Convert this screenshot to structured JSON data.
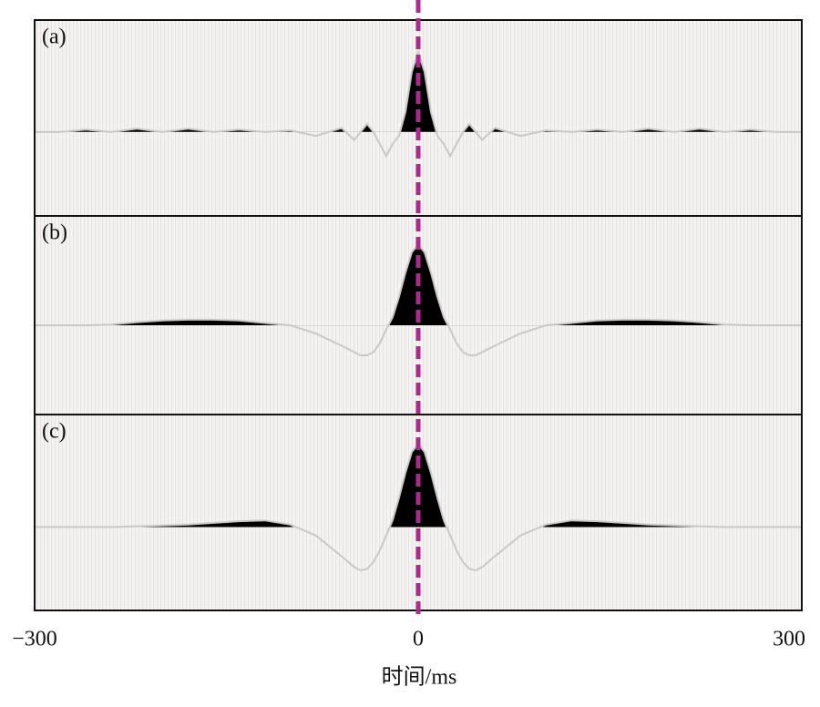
{
  "chart_data": {
    "type": "line",
    "xlabel": "时间/ms",
    "xlim": [
      -300,
      300
    ],
    "xticks": [
      {
        "value": -300,
        "label": "−300"
      },
      0,
      300
    ],
    "reference_x": 0,
    "reference_color": "#b0278e",
    "line_color": "#c8c8c8",
    "fill_color": "#000000",
    "x": [
      -300,
      -280,
      -260,
      -240,
      -220,
      -200,
      -180,
      -160,
      -140,
      -120,
      -100,
      -80,
      -60,
      -50,
      -45,
      -40,
      -35,
      -30,
      -25,
      -20,
      -15,
      -10,
      -5,
      0,
      5,
      10,
      15,
      20,
      25,
      30,
      35,
      40,
      45,
      50,
      60,
      80,
      100,
      120,
      140,
      160,
      180,
      200,
      220,
      240,
      260,
      280,
      300
    ],
    "panels": [
      {
        "label": "(a)",
        "ylim": [
          -1.05,
          1.4
        ],
        "values": [
          0,
          0,
          0.03,
          0,
          0.04,
          0,
          0.04,
          0,
          0.03,
          0,
          0.02,
          -0.05,
          0.05,
          -0.1,
          0,
          0.1,
          0,
          -0.15,
          -0.3,
          -0.15,
          -0.05,
          0.25,
          0.75,
          1,
          0.75,
          0.25,
          -0.05,
          -0.15,
          -0.3,
          -0.15,
          0,
          0.1,
          0,
          -0.1,
          0.05,
          -0.05,
          0.02,
          0,
          0.03,
          0,
          0.04,
          0,
          0.04,
          0,
          0.03,
          0,
          0
        ]
      },
      {
        "label": "(b)",
        "ylim": [
          -1.1,
          1.35
        ],
        "values": [
          0,
          0,
          0,
          0.01,
          0.04,
          0.06,
          0.07,
          0.07,
          0.06,
          0.03,
          0,
          -0.1,
          -0.25,
          -0.33,
          -0.37,
          -0.37,
          -0.33,
          -0.22,
          -0.05,
          0.1,
          0.35,
          0.65,
          0.9,
          1,
          0.9,
          0.65,
          0.35,
          0.1,
          -0.05,
          -0.22,
          -0.33,
          -0.37,
          -0.37,
          -0.33,
          -0.25,
          -0.1,
          0,
          0.03,
          0.06,
          0.07,
          0.07,
          0.06,
          0.04,
          0.01,
          0,
          0,
          0
        ]
      },
      {
        "label": "(c)",
        "ylim": [
          -1,
          1.35
        ],
        "values": [
          0,
          0,
          0,
          0,
          0.01,
          0.02,
          0.03,
          0.05,
          0.07,
          0.08,
          0.03,
          -0.1,
          -0.35,
          -0.48,
          -0.52,
          -0.5,
          -0.42,
          -0.28,
          -0.1,
          0.08,
          0.35,
          0.65,
          0.9,
          1,
          0.9,
          0.65,
          0.35,
          0.08,
          -0.1,
          -0.28,
          -0.42,
          -0.5,
          -0.52,
          -0.48,
          -0.35,
          -0.1,
          0.03,
          0.08,
          0.07,
          0.05,
          0.03,
          0.02,
          0.01,
          0,
          0,
          0,
          0
        ]
      }
    ]
  }
}
